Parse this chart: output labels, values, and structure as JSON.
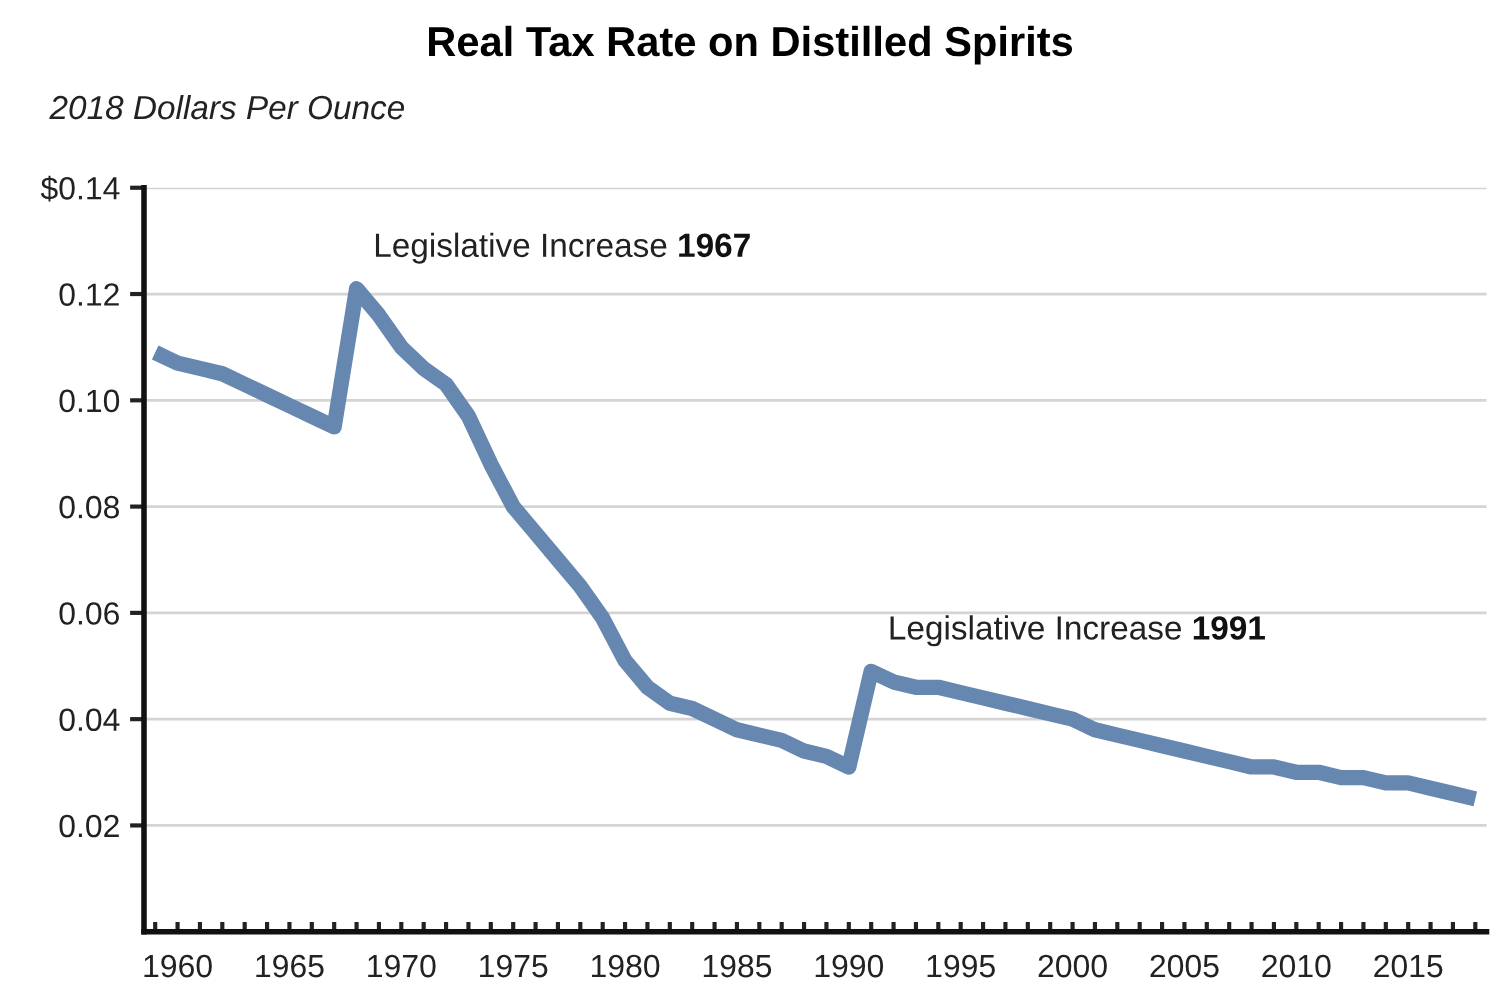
{
  "chart_data": {
    "type": "line",
    "title": "Real Tax Rate on Distilled Spirits",
    "subtitle": "2018 Dollars Per Ounce",
    "x": [
      1959,
      1960,
      1961,
      1962,
      1963,
      1964,
      1965,
      1966,
      1967,
      1968,
      1969,
      1970,
      1971,
      1972,
      1973,
      1974,
      1975,
      1976,
      1977,
      1978,
      1979,
      1980,
      1981,
      1982,
      1983,
      1984,
      1985,
      1986,
      1987,
      1988,
      1989,
      1990,
      1991,
      1992,
      1993,
      1994,
      1995,
      1996,
      1997,
      1998,
      1999,
      2000,
      2001,
      2002,
      2003,
      2004,
      2005,
      2006,
      2007,
      2008,
      2009,
      2010,
      2011,
      2012,
      2013,
      2014,
      2015,
      2016,
      2017,
      2018
    ],
    "series": [
      {
        "color": "#6687b0",
        "values": [
          0.109,
          0.107,
          0.106,
          0.105,
          0.103,
          0.101,
          0.099,
          0.097,
          0.095,
          0.121,
          0.116,
          0.11,
          0.106,
          0.103,
          0.097,
          0.088,
          0.08,
          0.075,
          0.07,
          0.065,
          0.059,
          0.051,
          0.046,
          0.043,
          0.042,
          0.04,
          0.038,
          0.037,
          0.036,
          0.034,
          0.033,
          0.031,
          0.049,
          0.047,
          0.046,
          0.046,
          0.045,
          0.044,
          0.043,
          0.042,
          0.041,
          0.04,
          0.038,
          0.037,
          0.036,
          0.035,
          0.034,
          0.033,
          0.032,
          0.031,
          0.031,
          0.03,
          0.03,
          0.029,
          0.029,
          0.028,
          0.028,
          0.027,
          0.026,
          0.025
        ]
      }
    ],
    "annotations": [
      {
        "text": "Legislative Increase 1967",
        "x": 1968,
        "y": 0.121
      },
      {
        "text": "Legislative Increase 1991",
        "x": 1991,
        "y": 0.049
      }
    ],
    "xlim": [
      1958.5,
      2018.5
    ],
    "xticks": [
      {
        "value": 1959,
        "label": null
      },
      1960,
      {
        "value": 1961,
        "label": null
      },
      {
        "value": 1962,
        "label": null
      },
      {
        "value": 1963,
        "label": null
      },
      {
        "value": 1964,
        "label": null
      },
      1965,
      {
        "value": 1966,
        "label": null
      },
      {
        "value": 1967,
        "label": null
      },
      {
        "value": 1968,
        "label": null
      },
      {
        "value": 1969,
        "label": null
      },
      1970,
      {
        "value": 1971,
        "label": null
      },
      {
        "value": 1972,
        "label": null
      },
      {
        "value": 1973,
        "label": null
      },
      {
        "value": 1974,
        "label": null
      },
      1975,
      {
        "value": 1976,
        "label": null
      },
      {
        "value": 1977,
        "label": null
      },
      {
        "value": 1978,
        "label": null
      },
      {
        "value": 1979,
        "label": null
      },
      1980,
      {
        "value": 1981,
        "label": null
      },
      {
        "value": 1982,
        "label": null
      },
      {
        "value": 1983,
        "label": null
      },
      {
        "value": 1984,
        "label": null
      },
      1985,
      {
        "value": 1986,
        "label": null
      },
      {
        "value": 1987,
        "label": null
      },
      {
        "value": 1988,
        "label": null
      },
      {
        "value": 1989,
        "label": null
      },
      1990,
      {
        "value": 1991,
        "label": null
      },
      {
        "value": 1992,
        "label": null
      },
      {
        "value": 1993,
        "label": null
      },
      {
        "value": 1994,
        "label": null
      },
      1995,
      {
        "value": 1996,
        "label": null
      },
      {
        "value": 1997,
        "label": null
      },
      {
        "value": 1998,
        "label": null
      },
      {
        "value": 1999,
        "label": null
      },
      2000,
      {
        "value": 2001,
        "label": null
      },
      {
        "value": 2002,
        "label": null
      },
      {
        "value": 2003,
        "label": null
      },
      {
        "value": 2004,
        "label": null
      },
      2005,
      {
        "value": 2006,
        "label": null
      },
      {
        "value": 2007,
        "label": null
      },
      {
        "value": 2008,
        "label": null
      },
      {
        "value": 2009,
        "label": null
      },
      2010,
      {
        "value": 2011,
        "label": null
      },
      {
        "value": 2012,
        "label": null
      },
      {
        "value": 2013,
        "label": null
      },
      {
        "value": 2014,
        "label": null
      },
      2015,
      {
        "value": 2016,
        "label": null
      },
      {
        "value": 2017,
        "label": null
      },
      {
        "value": 2018,
        "label": null
      }
    ],
    "ylim": [
      0,
      0.14
    ],
    "yticks": [
      0.02,
      0.04,
      0.06,
      0.08,
      {
        "value": 0.1,
        "label": "0.10"
      },
      0.12,
      {
        "value": 0.14,
        "label": "$0.14"
      }
    ],
    "grid": "y",
    "legend": false,
    "marker": "none",
    "line_style": "solid"
  }
}
